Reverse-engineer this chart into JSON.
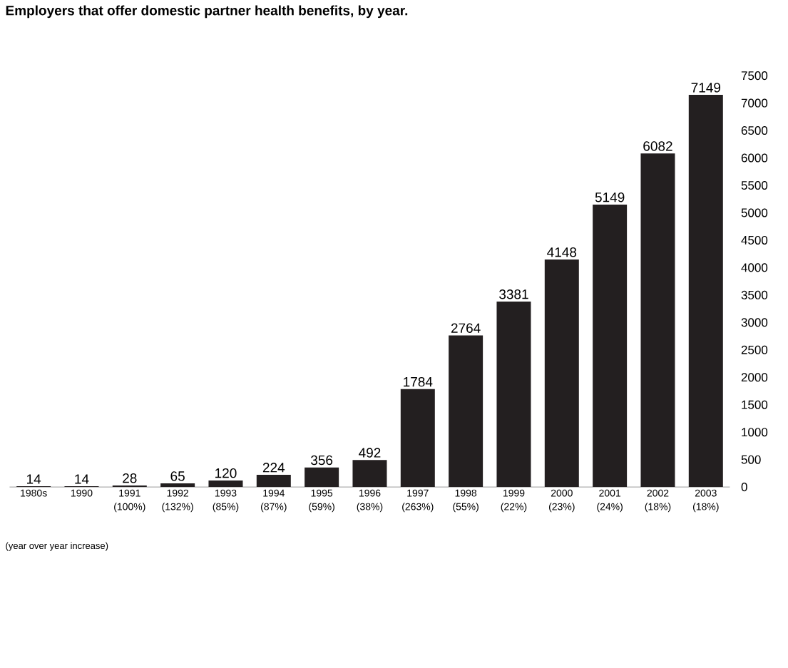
{
  "chart_data": {
    "type": "bar",
    "title": "Employers that offer domestic partner health benefits, by year.",
    "categories": [
      "1980s",
      "1990",
      "1991 (100%)",
      "1992 (132%)",
      "1993 (85%)",
      "1994 (87%)",
      "1995 (59%)",
      "1996 (38%)",
      "1997 (263%)",
      "1998 (55%)",
      "1999 (22%)",
      "2000 (23%)",
      "2001 (24%)",
      "2002 (18%)",
      "2003 (18%)"
    ],
    "values": [
      14,
      14,
      28,
      65,
      120,
      224,
      356,
      492,
      1784,
      2764,
      3381,
      4148,
      5149,
      6082,
      7149
    ],
    "color": "#231f20",
    "data_labels": true,
    "grid": false,
    "ylim": [
      0,
      7500
    ],
    "yticks": [
      0,
      500,
      1000,
      1500,
      2000,
      2500,
      3000,
      3500,
      4000,
      4500,
      5000,
      5500,
      6000,
      6500,
      7000,
      7500
    ],
    "annotations": [
      "(year over year increase)"
    ]
  }
}
